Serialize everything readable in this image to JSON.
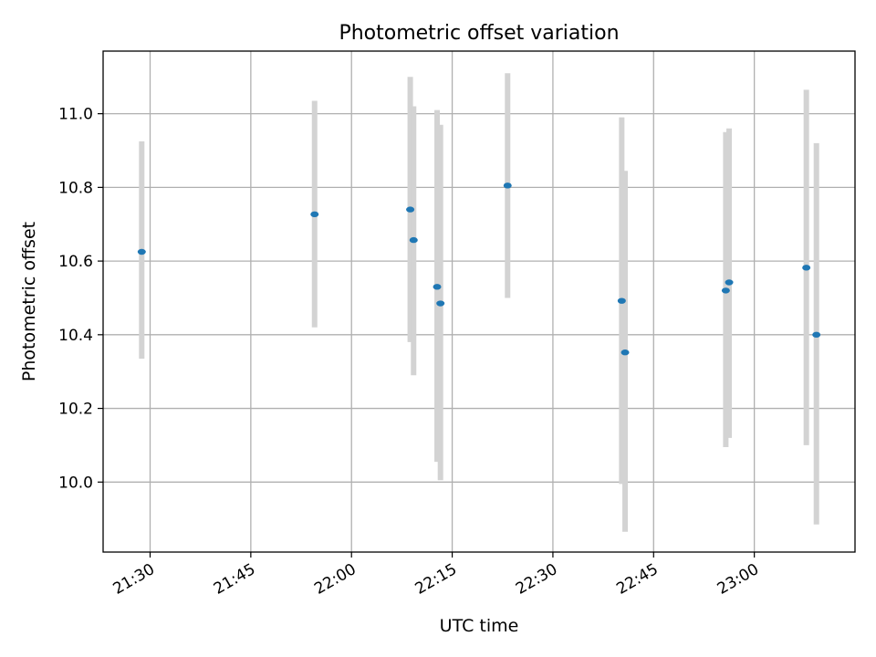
{
  "chart_data": {
    "type": "scatter",
    "title": "Photometric offset variation",
    "xlabel": "UTC time",
    "ylabel": "Photometric offset",
    "xlim": [
      "21:23",
      "23:15"
    ],
    "ylim": [
      9.81,
      11.17
    ],
    "x_ticks": [
      "21:30",
      "21:45",
      "22:00",
      "22:15",
      "22:30",
      "22:45",
      "23:00"
    ],
    "y_ticks": [
      "10.0",
      "10.2",
      "10.4",
      "10.6",
      "10.8",
      "11.0"
    ],
    "grid": true,
    "colors": {
      "point": "#1f77b4",
      "errorbar": "#d3d3d3",
      "grid": "#b0b0b0"
    },
    "points": [
      {
        "x": "21:28:45",
        "y": 10.625,
        "low": 10.335,
        "high": 10.925
      },
      {
        "x": "21:54:30",
        "y": 10.727,
        "low": 10.42,
        "high": 11.035
      },
      {
        "x": "22:08:45",
        "y": 10.74,
        "low": 10.38,
        "high": 11.1
      },
      {
        "x": "22:09:15",
        "y": 10.657,
        "low": 10.29,
        "high": 11.02
      },
      {
        "x": "22:12:45",
        "y": 10.53,
        "low": 10.055,
        "high": 11.01
      },
      {
        "x": "22:13:15",
        "y": 10.485,
        "low": 10.005,
        "high": 10.97
      },
      {
        "x": "22:23:15",
        "y": 10.805,
        "low": 10.5,
        "high": 11.11
      },
      {
        "x": "22:40:15",
        "y": 10.492,
        "low": 9.995,
        "high": 10.99
      },
      {
        "x": "22:40:45",
        "y": 10.352,
        "low": 9.865,
        "high": 10.845
      },
      {
        "x": "22:55:45",
        "y": 10.52,
        "low": 10.095,
        "high": 10.95
      },
      {
        "x": "22:56:15",
        "y": 10.542,
        "low": 10.12,
        "high": 10.96
      },
      {
        "x": "23:07:45",
        "y": 10.582,
        "low": 10.1,
        "high": 11.065
      },
      {
        "x": "23:09:15",
        "y": 10.4,
        "low": 9.885,
        "high": 10.92
      }
    ]
  }
}
